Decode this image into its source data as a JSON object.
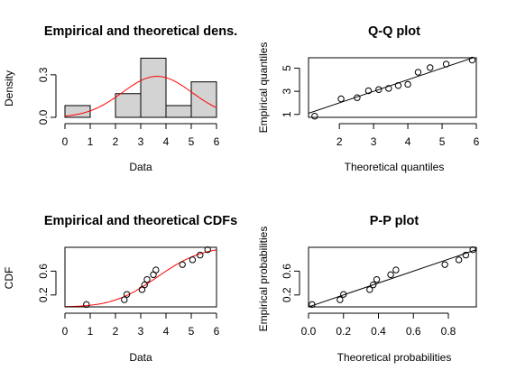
{
  "chart_data": [
    {
      "type": "bar",
      "title": "Empirical and theoretical dens.",
      "xlabel": "Data",
      "ylabel": "Density",
      "xlim": [
        0,
        6
      ],
      "ylim": [
        0,
        0.42
      ],
      "x_ticks": [
        "0",
        "1",
        "2",
        "3",
        "4",
        "5",
        "6"
      ],
      "y_ticks": [
        "0.0",
        "0.3"
      ],
      "y_tick_values": [
        0.0,
        0.3
      ],
      "bins": [
        {
          "from": 0,
          "to": 1,
          "density": 0.083
        },
        {
          "from": 1,
          "to": 2,
          "density": 0.0
        },
        {
          "from": 2,
          "to": 3,
          "density": 0.167
        },
        {
          "from": 3,
          "to": 4,
          "density": 0.417
        },
        {
          "from": 4,
          "to": 5,
          "density": 0.083
        },
        {
          "from": 5,
          "to": 6,
          "density": 0.25
        }
      ],
      "curve": {
        "color": "#ff0000",
        "mean": 3.65,
        "sd": 1.38
      },
      "bar_fill": "#d3d3d3"
    },
    {
      "type": "scatter",
      "title": "Q-Q plot",
      "xlabel": "Theoretical quantiles",
      "ylabel": "Empirical quantiles",
      "xlim": [
        1.1,
        6.0
      ],
      "ylim": [
        0.75,
        5.9
      ],
      "x_ticks": [
        "2",
        "3",
        "4",
        "5",
        "6"
      ],
      "x_tick_values": [
        2,
        3,
        4,
        5,
        6
      ],
      "y_ticks": [
        "1",
        "3",
        "5"
      ],
      "y_tick_values": [
        1,
        3,
        5
      ],
      "points": [
        {
          "x": 1.28,
          "y": 0.85
        },
        {
          "x": 2.05,
          "y": 2.35
        },
        {
          "x": 2.52,
          "y": 2.45
        },
        {
          "x": 2.85,
          "y": 3.05
        },
        {
          "x": 3.15,
          "y": 3.15
        },
        {
          "x": 3.44,
          "y": 3.25
        },
        {
          "x": 3.72,
          "y": 3.5
        },
        {
          "x": 4.0,
          "y": 3.6
        },
        {
          "x": 4.3,
          "y": 4.65
        },
        {
          "x": 4.65,
          "y": 5.05
        },
        {
          "x": 5.12,
          "y": 5.35
        },
        {
          "x": 5.88,
          "y": 5.7
        }
      ],
      "line": {
        "x": [
          1.1,
          6.0
        ],
        "y": [
          1.1,
          6.0
        ]
      }
    },
    {
      "type": "line",
      "title": "Empirical and theoretical CDFs",
      "xlabel": "Data",
      "ylabel": "CDF",
      "xlim": [
        0,
        6
      ],
      "ylim": [
        0.0,
        1.0
      ],
      "x_ticks": [
        "0",
        "1",
        "2",
        "3",
        "4",
        "5",
        "6"
      ],
      "y_ticks": [
        "0.2",
        "0.6"
      ],
      "y_tick_values": [
        0.2,
        0.6
      ],
      "points": [
        {
          "x": 0.85,
          "y": 0.04
        },
        {
          "x": 2.35,
          "y": 0.12
        },
        {
          "x": 2.45,
          "y": 0.21
        },
        {
          "x": 3.05,
          "y": 0.29
        },
        {
          "x": 3.15,
          "y": 0.37
        },
        {
          "x": 3.25,
          "y": 0.46
        },
        {
          "x": 3.5,
          "y": 0.54
        },
        {
          "x": 3.6,
          "y": 0.62
        },
        {
          "x": 4.65,
          "y": 0.71
        },
        {
          "x": 5.05,
          "y": 0.79
        },
        {
          "x": 5.35,
          "y": 0.87
        },
        {
          "x": 5.65,
          "y": 0.96
        }
      ],
      "curve": {
        "color": "#ff0000",
        "mean": 3.65,
        "sd": 1.38
      }
    },
    {
      "type": "scatter",
      "title": "P-P plot",
      "xlabel": "Theoretical probabilities",
      "ylabel": "Empirical probabilities",
      "xlim": [
        0.0,
        0.96
      ],
      "ylim": [
        0.0,
        1.0
      ],
      "x_ticks": [
        "0.0",
        "0.2",
        "0.4",
        "0.6",
        "0.8"
      ],
      "x_tick_values": [
        0.0,
        0.2,
        0.4,
        0.6,
        0.8
      ],
      "y_ticks": [
        "0.2",
        "0.6"
      ],
      "y_tick_values": [
        0.2,
        0.6
      ],
      "points": [
        {
          "x": 0.02,
          "y": 0.04
        },
        {
          "x": 0.18,
          "y": 0.12
        },
        {
          "x": 0.2,
          "y": 0.21
        },
        {
          "x": 0.35,
          "y": 0.29
        },
        {
          "x": 0.37,
          "y": 0.37
        },
        {
          "x": 0.39,
          "y": 0.46
        },
        {
          "x": 0.47,
          "y": 0.54
        },
        {
          "x": 0.5,
          "y": 0.62
        },
        {
          "x": 0.78,
          "y": 0.71
        },
        {
          "x": 0.86,
          "y": 0.79
        },
        {
          "x": 0.9,
          "y": 0.87
        },
        {
          "x": 0.94,
          "y": 0.96
        }
      ],
      "line": {
        "x": [
          0.0,
          0.96
        ],
        "y": [
          0.0,
          0.96
        ]
      }
    }
  ]
}
